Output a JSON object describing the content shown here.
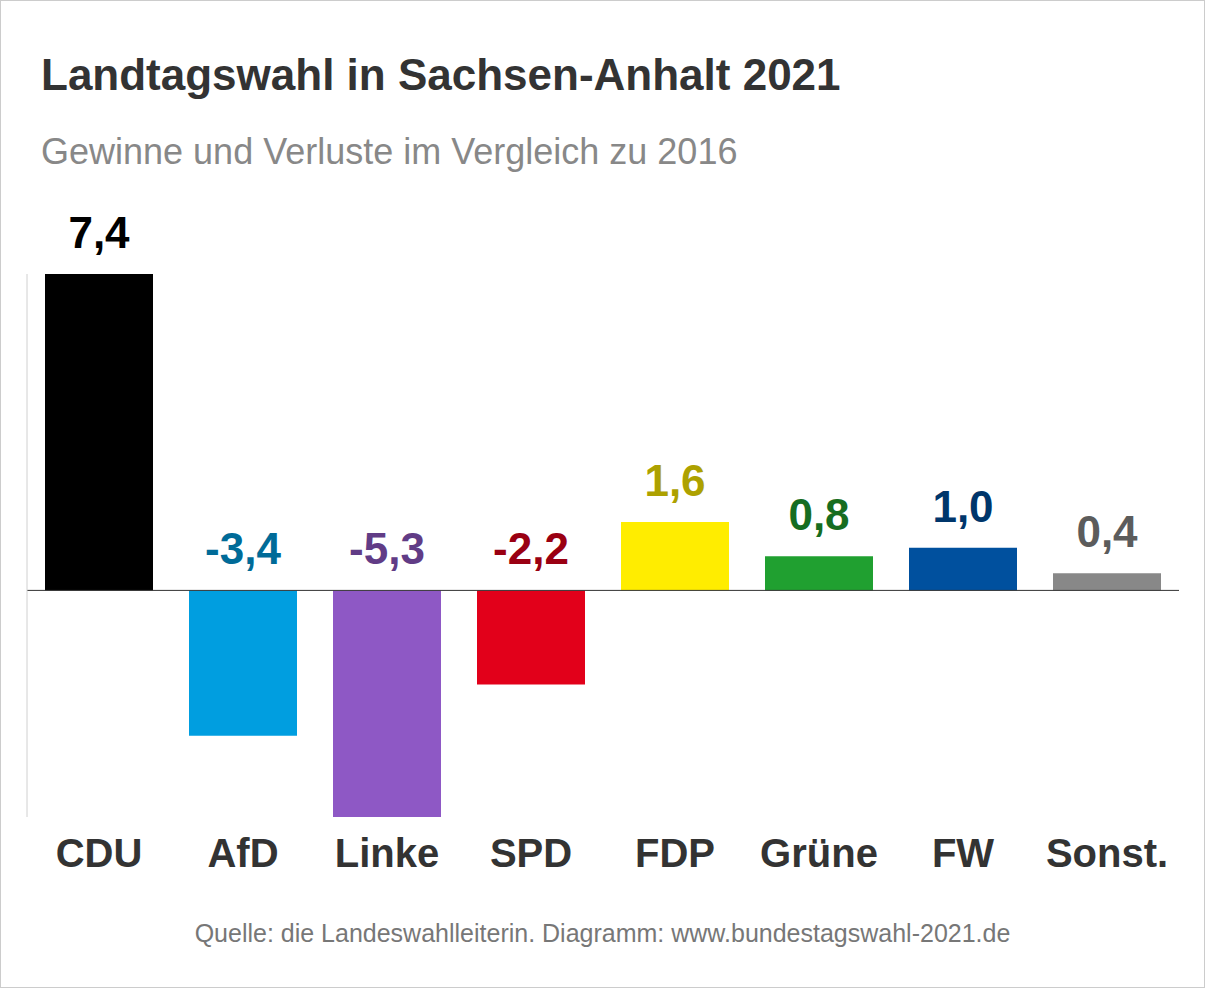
{
  "chart_data": {
    "type": "bar",
    "title": "Landtagswahl in Sachsen-Anhalt 2021",
    "subtitle": "Gewinne und Verluste im Vergleich zu 2016",
    "source": "Quelle: die Landeswahlleiterin. Diagramm: www.bundestagswahl-2021.de",
    "categories": [
      "CDU",
      "AfD",
      "Linke",
      "SPD",
      "FDP",
      "Grüne",
      "FW",
      "Sonst."
    ],
    "values": [
      7.4,
      -3.4,
      -5.3,
      -2.2,
      1.6,
      0.8,
      1.0,
      0.4
    ],
    "value_labels": [
      "7,4",
      "-3,4",
      "-5,3",
      "-2,2",
      "1,6",
      "0,8",
      "1,0",
      "0,4"
    ],
    "colors": [
      "#000000",
      "#009ee0",
      "#8e58c5",
      "#e2001a",
      "#ffed00",
      "#20a030",
      "#00509e",
      "#888888"
    ],
    "ylim": [
      -5.3,
      7.4
    ],
    "yticks": [
      0
    ],
    "grid": false,
    "data_labels": true,
    "tick_labels": "x"
  }
}
